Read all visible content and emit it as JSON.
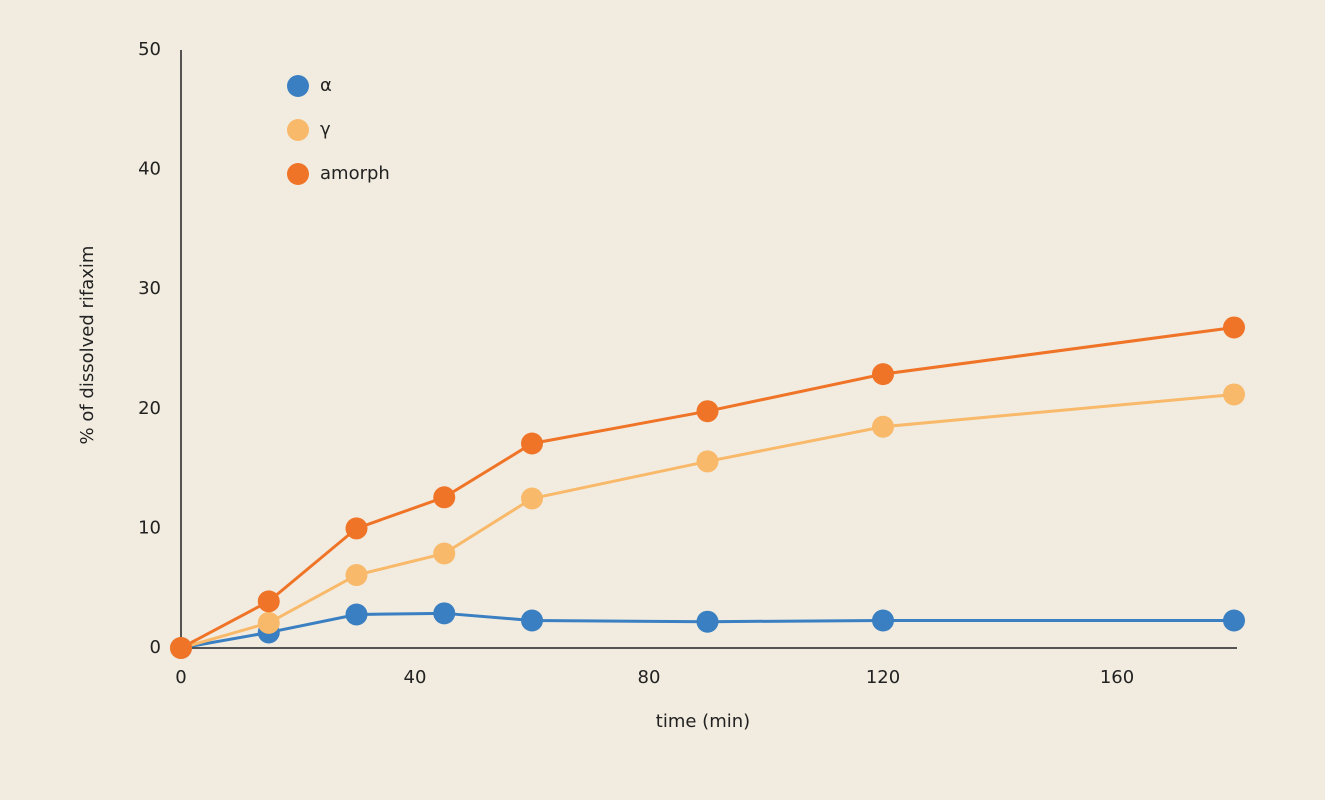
{
  "chart_data": {
    "type": "line",
    "x_label": "time (min)",
    "y_label": "% of dissolved rifaxim",
    "x": [
      0,
      15,
      30,
      45,
      60,
      90,
      120,
      180
    ],
    "series": [
      {
        "name": "α",
        "color": "#3a7fc1",
        "values": [
          0,
          1.3,
          2.8,
          2.9,
          2.3,
          2.2,
          2.3,
          2.3
        ]
      },
      {
        "name": "γ",
        "color": "#f9b96a",
        "values": [
          0,
          2.1,
          6.1,
          7.9,
          12.5,
          15.6,
          18.5,
          21.2
        ]
      },
      {
        "name": "amorph",
        "color": "#f07427",
        "values": [
          0,
          3.9,
          10.0,
          12.6,
          17.1,
          19.8,
          22.9,
          26.8
        ]
      }
    ],
    "xlim": [
      0,
      180
    ],
    "xticks": [
      0,
      40,
      80,
      120,
      160
    ],
    "ylim": [
      0,
      50
    ],
    "yticks": [
      0,
      10,
      20,
      30,
      40,
      50
    ],
    "grid": false,
    "legend": "upper-left"
  }
}
